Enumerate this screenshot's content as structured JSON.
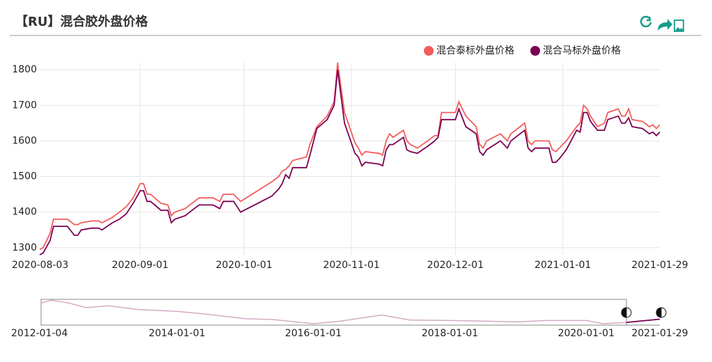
{
  "header": {
    "title": "【RU】混合胶外盘价格"
  },
  "chart_data": [
    {
      "type": "line",
      "x": [
        "2020-08-03",
        "2020-08-04",
        "2020-08-06",
        "2020-08-07",
        "2020-08-11",
        "2020-08-13",
        "2020-08-14",
        "2020-08-15",
        "2020-08-18",
        "2020-08-20",
        "2020-08-21",
        "2020-08-24",
        "2020-08-26",
        "2020-08-28",
        "2020-08-30",
        "2020-09-01",
        "2020-09-02",
        "2020-09-03",
        "2020-09-04",
        "2020-09-07",
        "2020-09-09",
        "2020-09-10",
        "2020-09-11",
        "2020-09-14",
        "2020-09-16",
        "2020-09-18",
        "2020-09-22",
        "2020-09-24",
        "2020-09-25",
        "2020-09-28",
        "2020-09-30",
        "2020-10-09",
        "2020-10-11",
        "2020-10-12",
        "2020-10-13",
        "2020-10-14",
        "2020-10-15",
        "2020-10-19",
        "2020-10-20",
        "2020-10-22",
        "2020-10-25",
        "2020-10-27",
        "2020-10-28",
        "2020-10-30",
        "2020-11-02",
        "2020-11-03",
        "2020-11-04",
        "2020-11-05",
        "2020-11-09",
        "2020-11-10",
        "2020-11-11",
        "2020-11-12",
        "2020-11-13",
        "2020-11-16",
        "2020-11-17",
        "2020-11-18",
        "2020-11-20",
        "2020-11-23",
        "2020-11-25",
        "2020-11-26",
        "2020-11-27",
        "2020-12-01",
        "2020-12-02",
        "2020-12-04",
        "2020-12-07",
        "2020-12-08",
        "2020-12-09",
        "2020-12-10",
        "2020-12-14",
        "2020-12-16",
        "2020-12-17",
        "2020-12-19",
        "2020-12-21",
        "2020-12-22",
        "2020-12-23",
        "2020-12-24",
        "2020-12-28",
        "2020-12-29",
        "2020-12-30",
        "2020-12-31",
        "2021-01-02",
        "2021-01-05",
        "2021-01-06",
        "2021-01-07",
        "2021-01-08",
        "2021-01-09",
        "2021-01-11",
        "2021-01-13",
        "2021-01-14",
        "2021-01-17",
        "2021-01-18",
        "2021-01-19",
        "2021-01-20",
        "2021-01-21",
        "2021-01-24",
        "2021-01-26",
        "2021-01-27",
        "2021-01-28",
        "2021-01-29"
      ],
      "series": [
        {
          "name": "混合泰标外盘价格",
          "color": "#f25c5c",
          "values": [
            1295,
            1300,
            1340,
            1380,
            1380,
            1365,
            1365,
            1370,
            1375,
            1375,
            1370,
            1385,
            1400,
            1415,
            1440,
            1480,
            1480,
            1450,
            1450,
            1425,
            1420,
            1390,
            1400,
            1410,
            1425,
            1440,
            1440,
            1430,
            1450,
            1450,
            1430,
            1485,
            1500,
            1515,
            1520,
            1530,
            1545,
            1555,
            1590,
            1640,
            1670,
            1710,
            1820,
            1680,
            1595,
            1580,
            1560,
            1570,
            1565,
            1560,
            1600,
            1620,
            1610,
            1630,
            1600,
            1590,
            1580,
            1600,
            1615,
            1615,
            1680,
            1680,
            1710,
            1670,
            1640,
            1590,
            1580,
            1600,
            1620,
            1600,
            1620,
            1635,
            1650,
            1600,
            1590,
            1600,
            1600,
            1575,
            1570,
            1580,
            1600,
            1640,
            1650,
            1700,
            1690,
            1670,
            1640,
            1650,
            1680,
            1690,
            1670,
            1670,
            1690,
            1660,
            1655,
            1640,
            1645,
            1635,
            1645
          ]
        },
        {
          "name": "混合马标外盘价格",
          "color": "#7a0052",
          "values": [
            1280,
            1285,
            1320,
            1360,
            1360,
            1335,
            1335,
            1350,
            1355,
            1355,
            1350,
            1370,
            1380,
            1395,
            1425,
            1460,
            1460,
            1430,
            1430,
            1405,
            1405,
            1370,
            1380,
            1390,
            1405,
            1420,
            1420,
            1410,
            1430,
            1430,
            1400,
            1445,
            1465,
            1480,
            1505,
            1495,
            1525,
            1525,
            1560,
            1635,
            1660,
            1700,
            1800,
            1650,
            1565,
            1555,
            1530,
            1540,
            1535,
            1530,
            1575,
            1590,
            1590,
            1610,
            1575,
            1570,
            1565,
            1585,
            1600,
            1610,
            1660,
            1660,
            1690,
            1640,
            1620,
            1570,
            1560,
            1575,
            1600,
            1580,
            1600,
            1615,
            1630,
            1580,
            1570,
            1580,
            1580,
            1540,
            1540,
            1550,
            1575,
            1630,
            1625,
            1680,
            1680,
            1655,
            1630,
            1630,
            1660,
            1670,
            1650,
            1650,
            1665,
            1640,
            1635,
            1620,
            1625,
            1615,
            1625
          ]
        }
      ],
      "xlim": [
        "2020-08-03",
        "2021-01-29"
      ],
      "xticks": [
        "2020-08-03",
        "2020-09-01",
        "2020-10-01",
        "2020-11-01",
        "2020-12-01",
        "2021-01-01",
        "2021-01-29"
      ],
      "ylim": [
        1280,
        1820
      ],
      "yticks": [
        1300,
        1400,
        1500,
        1600,
        1700,
        1800
      ],
      "grid": true,
      "legend": "top-right"
    },
    {
      "type": "line",
      "color": "#d4aac4",
      "highlight_color": "#7a0052",
      "x": [
        "2012-01-04",
        "2012-03-01",
        "2012-06-01",
        "2012-09-01",
        "2013-01-01",
        "2013-06-01",
        "2014-01-01",
        "2014-06-01",
        "2015-01-01",
        "2015-06-01",
        "2016-01-01",
        "2016-06-01",
        "2017-01-01",
        "2017-06-01",
        "2018-01-01",
        "2018-06-01",
        "2019-01-01",
        "2019-06-01",
        "2020-01-01",
        "2020-04-01",
        "2020-08-03",
        "2021-01-29"
      ],
      "values": [
        3400,
        3700,
        3400,
        2900,
        3100,
        2700,
        2500,
        2200,
        1700,
        1600,
        1150,
        1450,
        2100,
        1550,
        1500,
        1450,
        1350,
        1500,
        1500,
        1150,
        1295,
        1645
      ],
      "xlim": [
        "2012-01-04",
        "2021-01-29"
      ],
      "xticks": [
        "2012-01-04",
        "2014-01-01",
        "2016-01-01",
        "2018-01-01",
        "2020-01-01",
        "2021-01-29"
      ],
      "ylim": [
        1000,
        3800
      ],
      "selection": [
        "2020-08-03",
        "2021-01-29"
      ]
    }
  ]
}
